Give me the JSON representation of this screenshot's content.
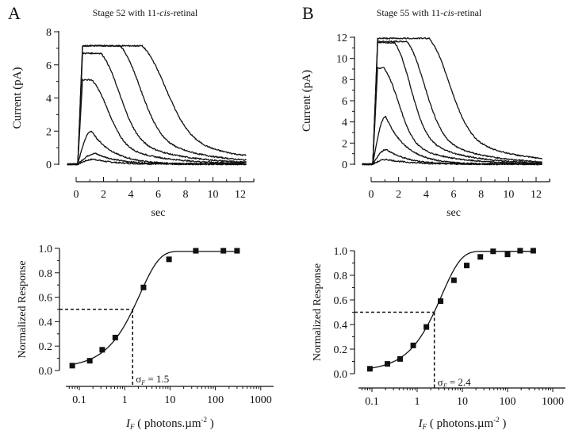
{
  "chart_data": [
    {
      "id": "A-top",
      "panel_label": "A",
      "type": "line",
      "title": "Stage 52 with 11-cis-retinal",
      "title_parts": [
        "Stage 52 with 11-",
        "cis",
        "-retinal"
      ],
      "xlabel": "sec",
      "ylabel": "Current (pA)",
      "xlim": [
        0,
        12
      ],
      "ylim": [
        0,
        8
      ],
      "xticks": [
        "0",
        "2",
        "4",
        "6",
        "8",
        "10",
        "12"
      ],
      "yticks": [
        "0",
        "2",
        "4",
        "6",
        "8"
      ],
      "series": [
        {
          "name": "trace-1",
          "peak": 0.3,
          "t_peak": 1.2,
          "plateau_end": 0,
          "decay_tau": 1.5,
          "tail": 0.0
        },
        {
          "name": "trace-2",
          "peak": 0.65,
          "t_peak": 1.3,
          "plateau_end": 0,
          "decay_tau": 1.7,
          "tail": 0.0
        },
        {
          "name": "trace-3",
          "peak": 2.0,
          "t_peak": 1.0,
          "plateau_end": 0,
          "decay_tau": 1.6,
          "tail": 0.05
        },
        {
          "name": "trace-4",
          "peak": 5.1,
          "t_peak": 1.0,
          "plateau_end": 1.0,
          "decay_tau": 1.8,
          "tail": 0.1
        },
        {
          "name": "trace-5",
          "peak": 6.7,
          "t_peak": 1.0,
          "plateau_end": 1.7,
          "decay_tau": 2.0,
          "tail": 0.15
        },
        {
          "name": "trace-6",
          "peak": 7.15,
          "t_peak": 0.6,
          "plateau_end": 3.1,
          "decay_tau": 2.2,
          "tail": 0.2
        },
        {
          "name": "trace-7",
          "peak": 7.15,
          "t_peak": 0.6,
          "plateau_end": 4.7,
          "decay_tau": 2.6,
          "tail": 0.55
        }
      ]
    },
    {
      "id": "B-top",
      "panel_label": "B",
      "type": "line",
      "title": "Stage 55 with 11-cis-retinal",
      "title_parts": [
        "Stage 55 with 11-",
        "cis",
        "-retinal"
      ],
      "xlabel": "sec",
      "ylabel": "Current (pA)",
      "xlim": [
        0,
        12
      ],
      "ylim": [
        0,
        12
      ],
      "xticks": [
        "0",
        "2",
        "4",
        "6",
        "8",
        "10",
        "12"
      ],
      "yticks": [
        "0",
        "2",
        "4",
        "6",
        "8",
        "10",
        "12"
      ],
      "series": [
        {
          "name": "trace-1",
          "peak": 0.45,
          "t_peak": 1.0,
          "plateau_end": 0,
          "decay_tau": 1.8,
          "tail": 0.0
        },
        {
          "name": "trace-2",
          "peak": 1.4,
          "t_peak": 1.0,
          "plateau_end": 0,
          "decay_tau": 1.5,
          "tail": 0.0
        },
        {
          "name": "trace-3",
          "peak": 4.5,
          "t_peak": 0.95,
          "plateau_end": 0,
          "decay_tau": 1.5,
          "tail": 0.05
        },
        {
          "name": "trace-4",
          "peak": 9.1,
          "t_peak": 0.8,
          "plateau_end": 0.5,
          "decay_tau": 1.6,
          "tail": 0.1
        },
        {
          "name": "trace-5",
          "peak": 11.5,
          "t_peak": 0.5,
          "plateau_end": 1.6,
          "decay_tau": 1.7,
          "tail": 0.15
        },
        {
          "name": "trace-6",
          "peak": 11.6,
          "t_peak": 0.6,
          "plateau_end": 2.5,
          "decay_tau": 1.9,
          "tail": 0.2
        },
        {
          "name": "trace-7",
          "peak": 11.9,
          "t_peak": 1.5,
          "plateau_end": 4.1,
          "decay_tau": 2.2,
          "tail": 0.3
        }
      ]
    },
    {
      "id": "A-bottom",
      "type": "scatter",
      "xscale": "log",
      "xlabel": "I_F ( photons.µm^-2 )",
      "xlabel_parts": [
        "I",
        "F",
        " ( photons.µm",
        "-2",
        " )"
      ],
      "ylabel": "Normalized Response",
      "xlim": [
        0.05,
        1500
      ],
      "ylim": [
        0,
        1.0
      ],
      "xticks": [
        "0.1",
        "1",
        "10",
        "100",
        "1000"
      ],
      "yticks": [
        "0.0",
        "0.2",
        "0.4",
        "0.6",
        "0.8",
        "1.0"
      ],
      "x": [
        0.07,
        0.17,
        0.32,
        0.62,
        2.6,
        9.5,
        37,
        150,
        300
      ],
      "y": [
        0.04,
        0.08,
        0.17,
        0.27,
        0.68,
        0.91,
        0.98,
        0.98,
        0.98
      ],
      "fit": {
        "type": "exponential-saturation",
        "sigma": 1.5,
        "max": 0.975
      },
      "annotation": {
        "symbol": "σ",
        "subscript": "F",
        "text": " = 1.5",
        "value": 1.5,
        "half_response": 0.5
      }
    },
    {
      "id": "B-bottom",
      "type": "scatter",
      "xscale": "log",
      "xlabel": "I_F ( photons.µm^-2 )",
      "xlabel_parts": [
        "I",
        "F",
        " ( photons.µm",
        "-2",
        " )"
      ],
      "ylabel": "Normalized Response",
      "xlim": [
        0.05,
        1500
      ],
      "ylim": [
        0,
        1.0
      ],
      "xticks": [
        "0.1",
        "1",
        "10",
        "100",
        "1000"
      ],
      "yticks": [
        "0.0",
        "0.2",
        "0.4",
        "0.6",
        "0.8",
        "1.0"
      ],
      "x": [
        0.09,
        0.22,
        0.42,
        0.82,
        1.6,
        3.3,
        6.5,
        12.5,
        25,
        48,
        100,
        190,
        370
      ],
      "y": [
        0.04,
        0.08,
        0.12,
        0.23,
        0.38,
        0.59,
        0.76,
        0.88,
        0.95,
        0.995,
        0.97,
        1.0,
        1.0
      ],
      "fit": {
        "type": "exponential-saturation",
        "sigma": 2.4,
        "max": 0.995
      },
      "annotation": {
        "symbol": "σ",
        "subscript": "F",
        "text": " = 2.4",
        "value": 2.4,
        "half_response": 0.5
      }
    }
  ]
}
